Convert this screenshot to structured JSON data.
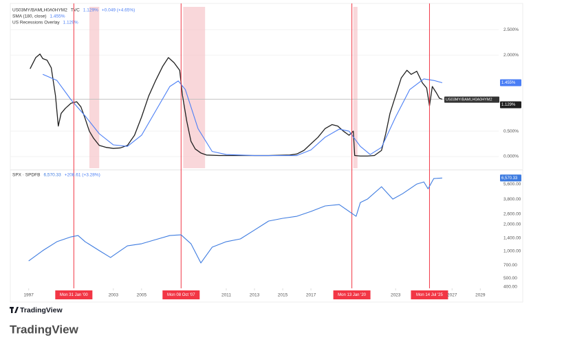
{
  "chart_data": [
    {
      "type": "line",
      "xlim": [
        1995.7,
        2030.3
      ],
      "ylim": [
        -0.23,
        2.95
      ],
      "yticks": [
        {
          "value": 0,
          "label": "0.000%"
        },
        {
          "value": 0.5,
          "label": "0.500%"
        },
        {
          "value": 2,
          "label": "2.000%"
        },
        {
          "value": 2.5,
          "label": "2.500%"
        }
      ],
      "grid": true,
      "series": [
        {
          "name": "US03MY/BAMLH0A0HYM2",
          "exchange": "TVC",
          "legend_value": "1.129%",
          "change": "+0.049 (+4.65%)",
          "color": "#1f1f1f",
          "price_line": true,
          "x": [
            1997.1,
            1997.5,
            1997.8,
            1998.0,
            1998.3,
            1998.6,
            1998.9,
            1999.1,
            1999.3,
            1999.6,
            2000.0,
            2000.4,
            2000.7,
            2001.0,
            2001.3,
            2001.6,
            2002.0,
            2002.5,
            2003.0,
            2003.5,
            2004.0,
            2004.5,
            2005.0,
            2005.5,
            2006.0,
            2006.5,
            2006.9,
            2007.3,
            2007.7,
            2007.9,
            2008.2,
            2008.5,
            2008.8,
            2009.2,
            2009.6,
            2010.5,
            2012,
            2014,
            2015.5,
            2016,
            2016.5,
            2017,
            2017.5,
            2018,
            2018.5,
            2018.9,
            2019.3,
            2019.7,
            2020.0,
            2020.1,
            2020.5,
            2021.0,
            2021.5,
            2022.0,
            2022.3,
            2022.6,
            2023.0,
            2023.4,
            2023.8,
            2024.1,
            2024.5,
            2024.9,
            2025.2,
            2025.4,
            2025.6,
            2025.9,
            2026.1,
            2026.3
          ],
          "values": [
            1.73,
            1.95,
            2.02,
            1.93,
            1.9,
            1.75,
            1.2,
            0.6,
            0.85,
            0.95,
            1.05,
            1.08,
            0.98,
            0.75,
            0.5,
            0.36,
            0.22,
            0.18,
            0.16,
            0.17,
            0.22,
            0.42,
            0.78,
            1.19,
            1.5,
            1.78,
            1.95,
            1.85,
            1.7,
            1.2,
            0.7,
            0.3,
            0.15,
            0.07,
            0.03,
            0.02,
            0.02,
            0.02,
            0.03,
            0.05,
            0.12,
            0.25,
            0.38,
            0.55,
            0.63,
            0.6,
            0.5,
            0.42,
            0.5,
            0.02,
            0.01,
            0.01,
            0.02,
            0.12,
            0.45,
            0.85,
            1.2,
            1.55,
            1.7,
            1.62,
            1.68,
            1.45,
            1.35,
            1.0,
            1.38,
            1.25,
            1.15,
            1.129
          ]
        },
        {
          "name": "SMA (180, close)",
          "legend_value": "1.455%",
          "color": "#4a7ef5",
          "x": [
            1998.0,
            1999.0,
            2000.0,
            2001.0,
            2002.0,
            2003.0,
            2004.0,
            2005.0,
            2006.0,
            2007.0,
            2007.6,
            2008.1,
            2009.0,
            2010.0,
            2011,
            2013,
            2016,
            2017,
            2018,
            2019,
            2019.7,
            2020.5,
            2021.2,
            2022.0,
            2023.0,
            2024.0,
            2025.0,
            2025.7,
            2026.3
          ],
          "values": [
            1.62,
            1.5,
            1.12,
            0.8,
            0.45,
            0.23,
            0.2,
            0.42,
            0.9,
            1.38,
            1.49,
            1.32,
            0.55,
            0.1,
            0.04,
            0.02,
            0.02,
            0.13,
            0.38,
            0.54,
            0.5,
            0.2,
            0.04,
            0.18,
            0.78,
            1.32,
            1.53,
            1.5,
            1.455
          ]
        }
      ],
      "recessions": {
        "name": "US Recessions Overlay",
        "legend_value": "1.129%",
        "color": "#f7c6cb",
        "spans": [
          [
            2001.3,
            2002.0
          ],
          [
            2007.95,
            2009.5
          ],
          [
            2020.0,
            2020.3
          ]
        ]
      },
      "markers": {
        "color": "#f23645",
        "x": [
          2000.2,
          2007.8,
          2019.9,
          2025.4
        ],
        "labels": [
          "Mon 31 Jan '00",
          "Mon 08 Oct '07",
          "Mon 13 Jan '20",
          "Mon 14 Jul '25"
        ]
      }
    },
    {
      "type": "line",
      "log_scale": true,
      "xlim": [
        1995.7,
        2030.3
      ],
      "ylim": [
        386,
        7740
      ],
      "yticks": [
        {
          "value": 400,
          "label": "400.00"
        },
        {
          "value": 500,
          "label": "500.00"
        },
        {
          "value": 700,
          "label": "700.00"
        },
        {
          "value": 1000,
          "label": "1,000.00"
        },
        {
          "value": 1400,
          "label": "1,400.00"
        },
        {
          "value": 2000,
          "label": "2,000.00"
        },
        {
          "value": 2600,
          "label": "2,600.00"
        },
        {
          "value": 3800,
          "label": "3,800.00"
        },
        {
          "value": 5600,
          "label": "5,600.00"
        }
      ],
      "xticks": [
        1997,
        2003,
        2005,
        2011,
        2013,
        2015,
        2017,
        2023,
        2027,
        2029
      ],
      "series": [
        {
          "name": "SPX · SPDFB",
          "legend_value": "6,570.33",
          "change": "+208.61 (+3.28%)",
          "color": "#3d7be0",
          "x": [
            1997.0,
            1998.0,
            1999.0,
            2000.0,
            2000.5,
            2001.0,
            2002.0,
            2002.8,
            2003.5,
            2004.0,
            2005.0,
            2006.0,
            2007.0,
            2007.8,
            2008.5,
            2009.2,
            2010.0,
            2011.0,
            2012.0,
            2013.0,
            2014.0,
            2015.0,
            2016.0,
            2017.0,
            2018.0,
            2019.0,
            2020.2,
            2020.5,
            2021.0,
            2022.0,
            2022.8,
            2023.5,
            2024.0,
            2024.5,
            2025.0,
            2025.3,
            2025.7,
            2026.3
          ],
          "values": [
            781,
            1018,
            1280,
            1448,
            1500,
            1280,
            1018,
            853,
            1018,
            1150,
            1214,
            1350,
            1500,
            1527,
            1214,
            741,
            1112,
            1280,
            1374,
            1727,
            2173,
            2333,
            2458,
            2782,
            3205,
            3321,
            2458,
            3497,
            3820,
            5250,
            3820,
            4398,
            4977,
            5625,
            5942,
            4977,
            6478,
            6570.33
          ]
        }
      ]
    }
  ],
  "footer": {
    "logo": "TradingView",
    "caption": "TradingView"
  }
}
